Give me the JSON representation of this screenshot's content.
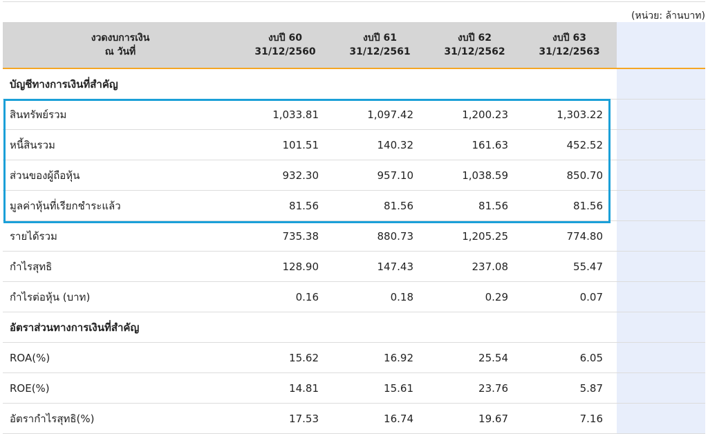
{
  "unit_label": "(หน่วย: ล้านบาท)",
  "header": {
    "period_label_line1": "งวดงบการเงิน",
    "period_label_line2": "ณ วันที่",
    "columns": [
      {
        "line1": "งบปี 60",
        "line2": "31/12/2560"
      },
      {
        "line1": "งบปี 61",
        "line2": "31/12/2561"
      },
      {
        "line1": "งบปี 62",
        "line2": "31/12/2562"
      },
      {
        "line1": "งบปี 63",
        "line2": "31/12/2563"
      }
    ]
  },
  "rows": [
    {
      "label": "บัญชีทางการเงินที่สำคัญ",
      "values": [
        "",
        "",
        "",
        ""
      ]
    },
    {
      "label": "สินทรัพย์รวม",
      "values": [
        "1,033.81",
        "1,097.42",
        "1,200.23",
        "1,303.22"
      ]
    },
    {
      "label": "หนี้สินรวม",
      "values": [
        "101.51",
        "140.32",
        "161.63",
        "452.52"
      ]
    },
    {
      "label": "ส่วนของผู้ถือหุ้น",
      "values": [
        "932.30",
        "957.10",
        "1,038.59",
        "850.70"
      ]
    },
    {
      "label": "มูลค่าหุ้นที่เรียกชำระแล้ว",
      "values": [
        "81.56",
        "81.56",
        "81.56",
        "81.56"
      ]
    },
    {
      "label": "รายได้รวม",
      "values": [
        "735.38",
        "880.73",
        "1,205.25",
        "774.80"
      ]
    },
    {
      "label": "กำไรสุทธิ",
      "values": [
        "128.90",
        "147.43",
        "237.08",
        "55.47"
      ]
    },
    {
      "label": "กำไรต่อหุ้น (บาท)",
      "values": [
        "0.16",
        "0.18",
        "0.29",
        "0.07"
      ]
    },
    {
      "label": "อัตราส่วนทางการเงินที่สำคัญ",
      "values": [
        "",
        "",
        "",
        ""
      ]
    },
    {
      "label": "ROA(%)",
      "values": [
        "15.62",
        "16.92",
        "25.54",
        "6.05"
      ]
    },
    {
      "label": "ROE(%)",
      "values": [
        "14.81",
        "15.61",
        "23.76",
        "5.87"
      ]
    },
    {
      "label": "อัตรากำไรสุทธิ(%)",
      "values": [
        "17.53",
        "16.74",
        "19.67",
        "7.16"
      ]
    }
  ],
  "colors": {
    "header_bg": "#d6d6d6",
    "header_underline": "#f5a623",
    "highlight_border": "#1ba0d8",
    "extra_column_bg": "#e8eefb"
  }
}
